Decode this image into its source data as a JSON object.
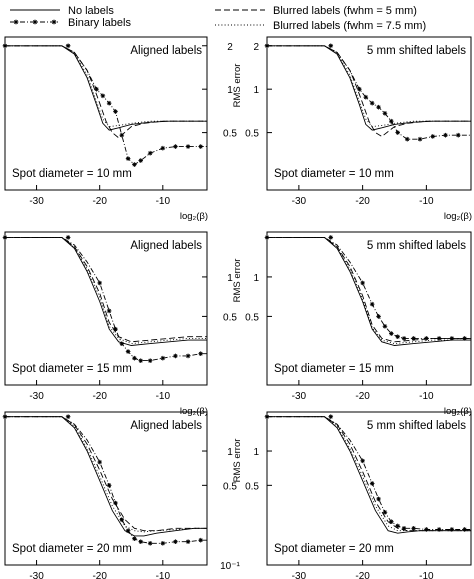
{
  "legend": {
    "items": [
      {
        "label": "No labels",
        "style": "solid"
      },
      {
        "label": "Binary labels",
        "style": "dashdot-star"
      },
      {
        "label": "Blurred labels (fwhm = 5 mm)",
        "style": "dashed"
      },
      {
        "label": "Blurred labels (fwhm = 7.5 mm)",
        "style": "dotted"
      }
    ]
  },
  "colors": {
    "line": "#000000",
    "background": "#ffffff"
  },
  "chart_data": [
    {
      "type": "line",
      "row": 1,
      "column": 1,
      "title": "Aligned labels",
      "annotation": "Spot diameter = 10 mm",
      "x_tick_labels": [
        "-30",
        "-20",
        "-10"
      ],
      "xlabel": "log₂(β)",
      "right_y_tick_labels": [
        "2",
        "1",
        "0.5"
      ],
      "right_ylabel": "RMS error",
      "xlim": [
        -35,
        -3
      ],
      "ylim": [
        0.2,
        2.3
      ],
      "yscale": "log",
      "series": [
        {
          "name": "No labels",
          "x": [
            -35,
            -30,
            -26,
            -24,
            -22,
            -20.5,
            -19.5,
            -18.5,
            -17,
            -15,
            -12,
            -9,
            -6,
            -3
          ],
          "y": [
            2.0,
            2.0,
            2.0,
            1.75,
            1.2,
            0.78,
            0.58,
            0.52,
            0.54,
            0.57,
            0.59,
            0.6,
            0.6,
            0.6
          ]
        },
        {
          "name": "Binary labels",
          "x": [
            -35,
            -30,
            -26,
            -24,
            -22,
            -20.5,
            -19.5,
            -18.5,
            -17.5,
            -16.5,
            -15.5,
            -14.5,
            -13.5,
            -12,
            -10,
            -8,
            -6,
            -4,
            -3
          ],
          "y": [
            2.0,
            2.0,
            2.0,
            1.8,
            1.35,
            1.0,
            0.9,
            0.8,
            0.7,
            0.48,
            0.33,
            0.3,
            0.32,
            0.36,
            0.39,
            0.4,
            0.4,
            0.4,
            0.4
          ]
        },
        {
          "name": "Blurred labels (fwhm = 5 mm)",
          "x": [
            -35,
            -30,
            -26,
            -24,
            -22,
            -21,
            -20,
            -19,
            -18,
            -17,
            -15,
            -13,
            -10,
            -7,
            -3
          ],
          "y": [
            2.0,
            2.0,
            2.0,
            1.8,
            1.35,
            1.05,
            0.8,
            0.6,
            0.5,
            0.46,
            0.55,
            0.58,
            0.6,
            0.6,
            0.6
          ]
        },
        {
          "name": "Blurred labels (fwhm = 7.5 mm)",
          "x": [
            -35,
            -30,
            -26,
            -24,
            -22,
            -20.5,
            -19.5,
            -18.5,
            -17,
            -15,
            -12,
            -9,
            -6,
            -3
          ],
          "y": [
            2.0,
            2.0,
            2.0,
            1.78,
            1.25,
            0.82,
            0.62,
            0.55,
            0.56,
            0.58,
            0.6,
            0.6,
            0.6,
            0.6
          ]
        }
      ]
    },
    {
      "type": "line",
      "row": 1,
      "column": 2,
      "title": "5 mm shifted labels",
      "annotation": "Spot diameter = 10 mm",
      "x_tick_labels": [
        "-30",
        "-20",
        "-10"
      ],
      "xlabel": "log₂(β)",
      "left_y_tick_labels": [
        "2",
        "1",
        "0.5"
      ],
      "xlim": [
        -35,
        -3
      ],
      "ylim": [
        0.2,
        2.3
      ],
      "yscale": "log",
      "series": [
        {
          "name": "No labels",
          "x": [
            -35,
            -30,
            -26,
            -24,
            -22,
            -20.5,
            -19.5,
            -18.5,
            -17,
            -15,
            -12,
            -9,
            -6,
            -3
          ],
          "y": [
            2.0,
            2.0,
            2.0,
            1.75,
            1.2,
            0.78,
            0.57,
            0.52,
            0.54,
            0.57,
            0.59,
            0.6,
            0.6,
            0.6
          ]
        },
        {
          "name": "Binary labels",
          "x": [
            -35,
            -30,
            -26,
            -24,
            -22,
            -20.5,
            -19.5,
            -18.5,
            -17.5,
            -16.5,
            -15.5,
            -14.5,
            -13,
            -11,
            -9,
            -7,
            -5,
            -3
          ],
          "y": [
            2.0,
            2.0,
            2.0,
            1.8,
            1.35,
            1.0,
            0.88,
            0.8,
            0.75,
            0.68,
            0.6,
            0.5,
            0.45,
            0.45,
            0.47,
            0.48,
            0.48,
            0.48
          ]
        },
        {
          "name": "Blurred labels (fwhm = 5 mm)",
          "x": [
            -35,
            -30,
            -26,
            -24,
            -22,
            -21,
            -20,
            -19,
            -18,
            -17,
            -15,
            -13,
            -10,
            -7,
            -3
          ],
          "y": [
            2.0,
            2.0,
            2.0,
            1.8,
            1.35,
            1.05,
            0.8,
            0.6,
            0.5,
            0.47,
            0.55,
            0.58,
            0.6,
            0.6,
            0.6
          ]
        },
        {
          "name": "Blurred labels (fwhm = 7.5 mm)",
          "x": [
            -35,
            -30,
            -26,
            -24,
            -22,
            -20.5,
            -19.5,
            -18.5,
            -17,
            -15,
            -12,
            -9,
            -6,
            -3
          ],
          "y": [
            2.0,
            2.0,
            2.0,
            1.78,
            1.25,
            0.82,
            0.62,
            0.55,
            0.56,
            0.58,
            0.6,
            0.6,
            0.6,
            0.6
          ]
        }
      ]
    },
    {
      "type": "line",
      "row": 2,
      "column": 1,
      "title": "Aligned labels",
      "annotation": "Spot diameter = 15 mm",
      "x_tick_labels": [
        "-30",
        "-20",
        "-10"
      ],
      "xlabel": "log₂(β)",
      "right_y_tick_labels": [
        "1",
        "0.5"
      ],
      "right_ylabel": "RMS error",
      "xlim": [
        -35,
        -3
      ],
      "ylim": [
        0.15,
        2.2
      ],
      "yscale": "log",
      "series": [
        {
          "name": "No labels",
          "x": [
            -35,
            -30,
            -26,
            -24,
            -22,
            -20,
            -18.5,
            -17,
            -15,
            -12,
            -9,
            -6,
            -3
          ],
          "y": [
            2.0,
            2.0,
            2.0,
            1.65,
            1.1,
            0.65,
            0.4,
            0.32,
            0.3,
            0.31,
            0.32,
            0.33,
            0.33
          ]
        },
        {
          "name": "Binary labels",
          "x": [
            -35,
            -30,
            -26,
            -24,
            -22,
            -20,
            -18.5,
            -17.5,
            -16.5,
            -15.5,
            -14.5,
            -13.5,
            -12,
            -10,
            -8,
            -6,
            -4,
            -3
          ],
          "y": [
            2.0,
            2.0,
            2.0,
            1.75,
            1.3,
            0.9,
            0.55,
            0.4,
            0.31,
            0.27,
            0.24,
            0.23,
            0.23,
            0.24,
            0.25,
            0.25,
            0.26,
            0.26
          ]
        },
        {
          "name": "Blurred labels (fwhm = 5 mm)",
          "x": [
            -35,
            -30,
            -26,
            -24,
            -22,
            -20,
            -18.5,
            -17,
            -15,
            -12,
            -9,
            -6,
            -3
          ],
          "y": [
            2.0,
            2.0,
            2.0,
            1.7,
            1.2,
            0.75,
            0.45,
            0.35,
            0.32,
            0.33,
            0.34,
            0.35,
            0.35
          ]
        },
        {
          "name": "Blurred labels (fwhm = 7.5 mm)",
          "x": [
            -35,
            -30,
            -26,
            -24,
            -22,
            -20,
            -18.5,
            -17,
            -15,
            -12,
            -9,
            -6,
            -3
          ],
          "y": [
            2.0,
            2.0,
            2.0,
            1.68,
            1.15,
            0.7,
            0.42,
            0.34,
            0.31,
            0.32,
            0.33,
            0.34,
            0.34
          ]
        }
      ]
    },
    {
      "type": "line",
      "row": 2,
      "column": 2,
      "title": "5 mm shifted labels",
      "annotation": "Spot diameter = 15 mm",
      "x_tick_labels": [
        "-30",
        "-20",
        "-10"
      ],
      "xlabel": "log₂(β)",
      "left_y_tick_labels": [
        "1",
        "0.5"
      ],
      "xlim": [
        -35,
        -3
      ],
      "ylim": [
        0.15,
        2.2
      ],
      "yscale": "log",
      "series": [
        {
          "name": "No labels",
          "x": [
            -35,
            -30,
            -26,
            -24,
            -22,
            -20,
            -18.5,
            -17,
            -15,
            -12,
            -9,
            -6,
            -3
          ],
          "y": [
            2.0,
            2.0,
            2.0,
            1.65,
            1.1,
            0.65,
            0.4,
            0.32,
            0.3,
            0.31,
            0.32,
            0.33,
            0.33
          ]
        },
        {
          "name": "Binary labels",
          "x": [
            -35,
            -30,
            -26,
            -24,
            -22,
            -20,
            -18.5,
            -17.5,
            -16.5,
            -15.5,
            -14.5,
            -13.5,
            -12,
            -10,
            -8,
            -6,
            -4,
            -3
          ],
          "y": [
            2.0,
            2.0,
            2.0,
            1.75,
            1.3,
            0.9,
            0.62,
            0.5,
            0.42,
            0.37,
            0.35,
            0.34,
            0.34,
            0.34,
            0.34,
            0.34,
            0.34,
            0.34
          ]
        },
        {
          "name": "Blurred labels (fwhm = 5 mm)",
          "x": [
            -35,
            -30,
            -26,
            -24,
            -22,
            -20,
            -18.5,
            -17,
            -15,
            -12,
            -9,
            -6,
            -3
          ],
          "y": [
            2.0,
            2.0,
            2.0,
            1.7,
            1.2,
            0.72,
            0.43,
            0.34,
            0.32,
            0.33,
            0.34,
            0.34,
            0.34
          ]
        },
        {
          "name": "Blurred labels (fwhm = 7.5 mm)",
          "x": [
            -35,
            -30,
            -26,
            -24,
            -22,
            -20,
            -18.5,
            -17,
            -15,
            -12,
            -9,
            -6,
            -3
          ],
          "y": [
            2.0,
            2.0,
            2.0,
            1.68,
            1.15,
            0.68,
            0.41,
            0.33,
            0.31,
            0.32,
            0.33,
            0.33,
            0.33
          ]
        }
      ]
    },
    {
      "type": "line",
      "row": 3,
      "column": 1,
      "title": "Aligned labels",
      "annotation": "Spot diameter = 20 mm",
      "x_tick_labels": [
        "-30",
        "-20",
        "-10"
      ],
      "xlabel": "log₂(β)",
      "right_y_tick_labels": [
        "1",
        "0.5",
        "10⁻¹"
      ],
      "right_ylabel": "RMS error",
      "xlim": [
        -35,
        -3
      ],
      "ylim": [
        0.1,
        2.2
      ],
      "yscale": "log",
      "series": [
        {
          "name": "No labels",
          "x": [
            -35,
            -30,
            -26,
            -24,
            -22,
            -20,
            -18,
            -16,
            -14.5,
            -13,
            -11,
            -8,
            -5,
            -3
          ],
          "y": [
            2.0,
            2.0,
            2.0,
            1.6,
            1.0,
            0.55,
            0.3,
            0.2,
            0.18,
            0.18,
            0.19,
            0.2,
            0.21,
            0.21
          ]
        },
        {
          "name": "Binary labels",
          "x": [
            -35,
            -30,
            -26,
            -24,
            -22,
            -20,
            -18.5,
            -17.5,
            -16.5,
            -15.5,
            -14.5,
            -13.5,
            -12,
            -10,
            -8,
            -6,
            -4,
            -3
          ],
          "y": [
            2.0,
            2.0,
            2.0,
            1.72,
            1.25,
            0.8,
            0.5,
            0.35,
            0.25,
            0.2,
            0.17,
            0.16,
            0.155,
            0.155,
            0.16,
            0.16,
            0.165,
            0.165
          ]
        },
        {
          "name": "Blurred labels (fwhm = 5 mm)",
          "x": [
            -35,
            -30,
            -26,
            -24,
            -22,
            -20,
            -18,
            -16,
            -14.5,
            -13,
            -11,
            -8,
            -5,
            -3
          ],
          "y": [
            2.0,
            2.0,
            2.0,
            1.7,
            1.15,
            0.68,
            0.38,
            0.25,
            0.21,
            0.2,
            0.2,
            0.21,
            0.21,
            0.21
          ]
        },
        {
          "name": "Blurred labels (fwhm = 7.5 mm)",
          "x": [
            -35,
            -30,
            -26,
            -24,
            -22,
            -20,
            -18,
            -16,
            -14.5,
            -13,
            -11,
            -8,
            -5,
            -3
          ],
          "y": [
            2.0,
            2.0,
            2.0,
            1.65,
            1.05,
            0.6,
            0.33,
            0.22,
            0.2,
            0.195,
            0.2,
            0.205,
            0.21,
            0.21
          ]
        }
      ]
    },
    {
      "type": "line",
      "row": 3,
      "column": 2,
      "title": "5 mm shifted labels",
      "annotation": "Spot diameter = 20 mm",
      "x_tick_labels": [
        "-30",
        "-20",
        "-10"
      ],
      "xlabel": "log₂(β)",
      "left_y_tick_labels": [
        "1",
        "0.5"
      ],
      "xlim": [
        -35,
        -3
      ],
      "ylim": [
        0.1,
        2.2
      ],
      "yscale": "log",
      "series": [
        {
          "name": "No labels",
          "x": [
            -35,
            -30,
            -26,
            -24,
            -22,
            -20,
            -18,
            -16,
            -14.5,
            -13,
            -11,
            -8,
            -5,
            -3
          ],
          "y": [
            2.0,
            2.0,
            2.0,
            1.6,
            1.0,
            0.55,
            0.3,
            0.2,
            0.19,
            0.195,
            0.2,
            0.2,
            0.2,
            0.2
          ]
        },
        {
          "name": "Binary labels",
          "x": [
            -35,
            -30,
            -26,
            -24,
            -22,
            -20,
            -18.5,
            -17.5,
            -16.5,
            -15.5,
            -14.5,
            -13.5,
            -12,
            -10,
            -8,
            -6,
            -4,
            -3
          ],
          "y": [
            2.0,
            2.0,
            2.0,
            1.72,
            1.25,
            0.82,
            0.52,
            0.38,
            0.29,
            0.24,
            0.22,
            0.21,
            0.21,
            0.205,
            0.205,
            0.205,
            0.205,
            0.205
          ]
        },
        {
          "name": "Blurred labels (fwhm = 5 mm)",
          "x": [
            -35,
            -30,
            -26,
            -24,
            -22,
            -20,
            -18,
            -16,
            -14.5,
            -13,
            -11,
            -8,
            -5,
            -3
          ],
          "y": [
            2.0,
            2.0,
            2.0,
            1.7,
            1.15,
            0.66,
            0.36,
            0.24,
            0.21,
            0.2,
            0.2,
            0.2,
            0.2,
            0.2
          ]
        },
        {
          "name": "Blurred labels (fwhm = 7.5 mm)",
          "x": [
            -35,
            -30,
            -26,
            -24,
            -22,
            -20,
            -18,
            -16,
            -14.5,
            -13,
            -11,
            -8,
            -5,
            -3
          ],
          "y": [
            2.0,
            2.0,
            2.0,
            1.65,
            1.05,
            0.6,
            0.33,
            0.22,
            0.2,
            0.2,
            0.2,
            0.2,
            0.2,
            0.2
          ]
        }
      ]
    }
  ]
}
